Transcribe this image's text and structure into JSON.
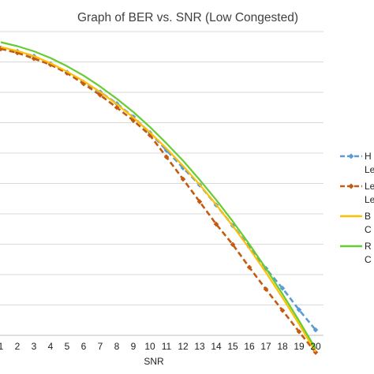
{
  "chart_data": {
    "type": "line",
    "title": "Graph of BER vs. SNR (Low Congested)",
    "xlabel": "SNR",
    "ylabel": "",
    "x": [
      1,
      2,
      3,
      4,
      5,
      6,
      7,
      8,
      9,
      10,
      11,
      12,
      13,
      14,
      15,
      16,
      17,
      18,
      19,
      20
    ],
    "x_tick_labels": [
      "1",
      "2",
      "3",
      "4",
      "5",
      "6",
      "7",
      "8",
      "9",
      "10",
      "11",
      "12",
      "13",
      "14",
      "15",
      "16",
      "17",
      "18",
      "19",
      "20"
    ],
    "ylim": [
      0,
      1
    ],
    "y_tick_values": [
      0.1,
      0.2,
      0.3,
      0.4,
      0.5,
      0.6,
      0.7,
      0.8,
      0.9,
      1.0
    ],
    "grid": true,
    "legend_position": "right",
    "series": [
      {
        "name": "H",
        "name_line2": "Le",
        "color": "#5B9BD5",
        "style": "dashed-diamond",
        "values": [
          0.946,
          0.935,
          0.919,
          0.894,
          0.866,
          0.833,
          0.801,
          0.763,
          0.719,
          0.667,
          0.609,
          0.551,
          0.495,
          0.429,
          0.361,
          0.291,
          0.22,
          0.155,
          0.084,
          0.018
        ]
      },
      {
        "name": "Le",
        "name_line2": "Le",
        "color": "#C55A11",
        "style": "dashed-diamond",
        "values": [
          0.943,
          0.93,
          0.911,
          0.891,
          0.863,
          0.828,
          0.791,
          0.75,
          0.707,
          0.659,
          0.587,
          0.514,
          0.44,
          0.366,
          0.299,
          0.224,
          0.152,
          0.082,
          0.012,
          -0.056
        ]
      },
      {
        "name": "B",
        "name_line2": "C",
        "color": "#FFC000",
        "style": "solid",
        "values": [
          0.949,
          0.936,
          0.919,
          0.896,
          0.868,
          0.837,
          0.801,
          0.761,
          0.717,
          0.668,
          0.615,
          0.558,
          0.496,
          0.43,
          0.36,
          0.286,
          0.207,
          0.124,
          0.037,
          -0.054
        ]
      },
      {
        "name": "R",
        "name_line2": "C",
        "color": "#66CC33",
        "style": "solid",
        "values": [
          0.965,
          0.952,
          0.935,
          0.913,
          0.886,
          0.855,
          0.819,
          0.779,
          0.735,
          0.686,
          0.632,
          0.575,
          0.512,
          0.446,
          0.375,
          0.3,
          0.22,
          0.136,
          0.048,
          -0.044
        ]
      }
    ]
  }
}
